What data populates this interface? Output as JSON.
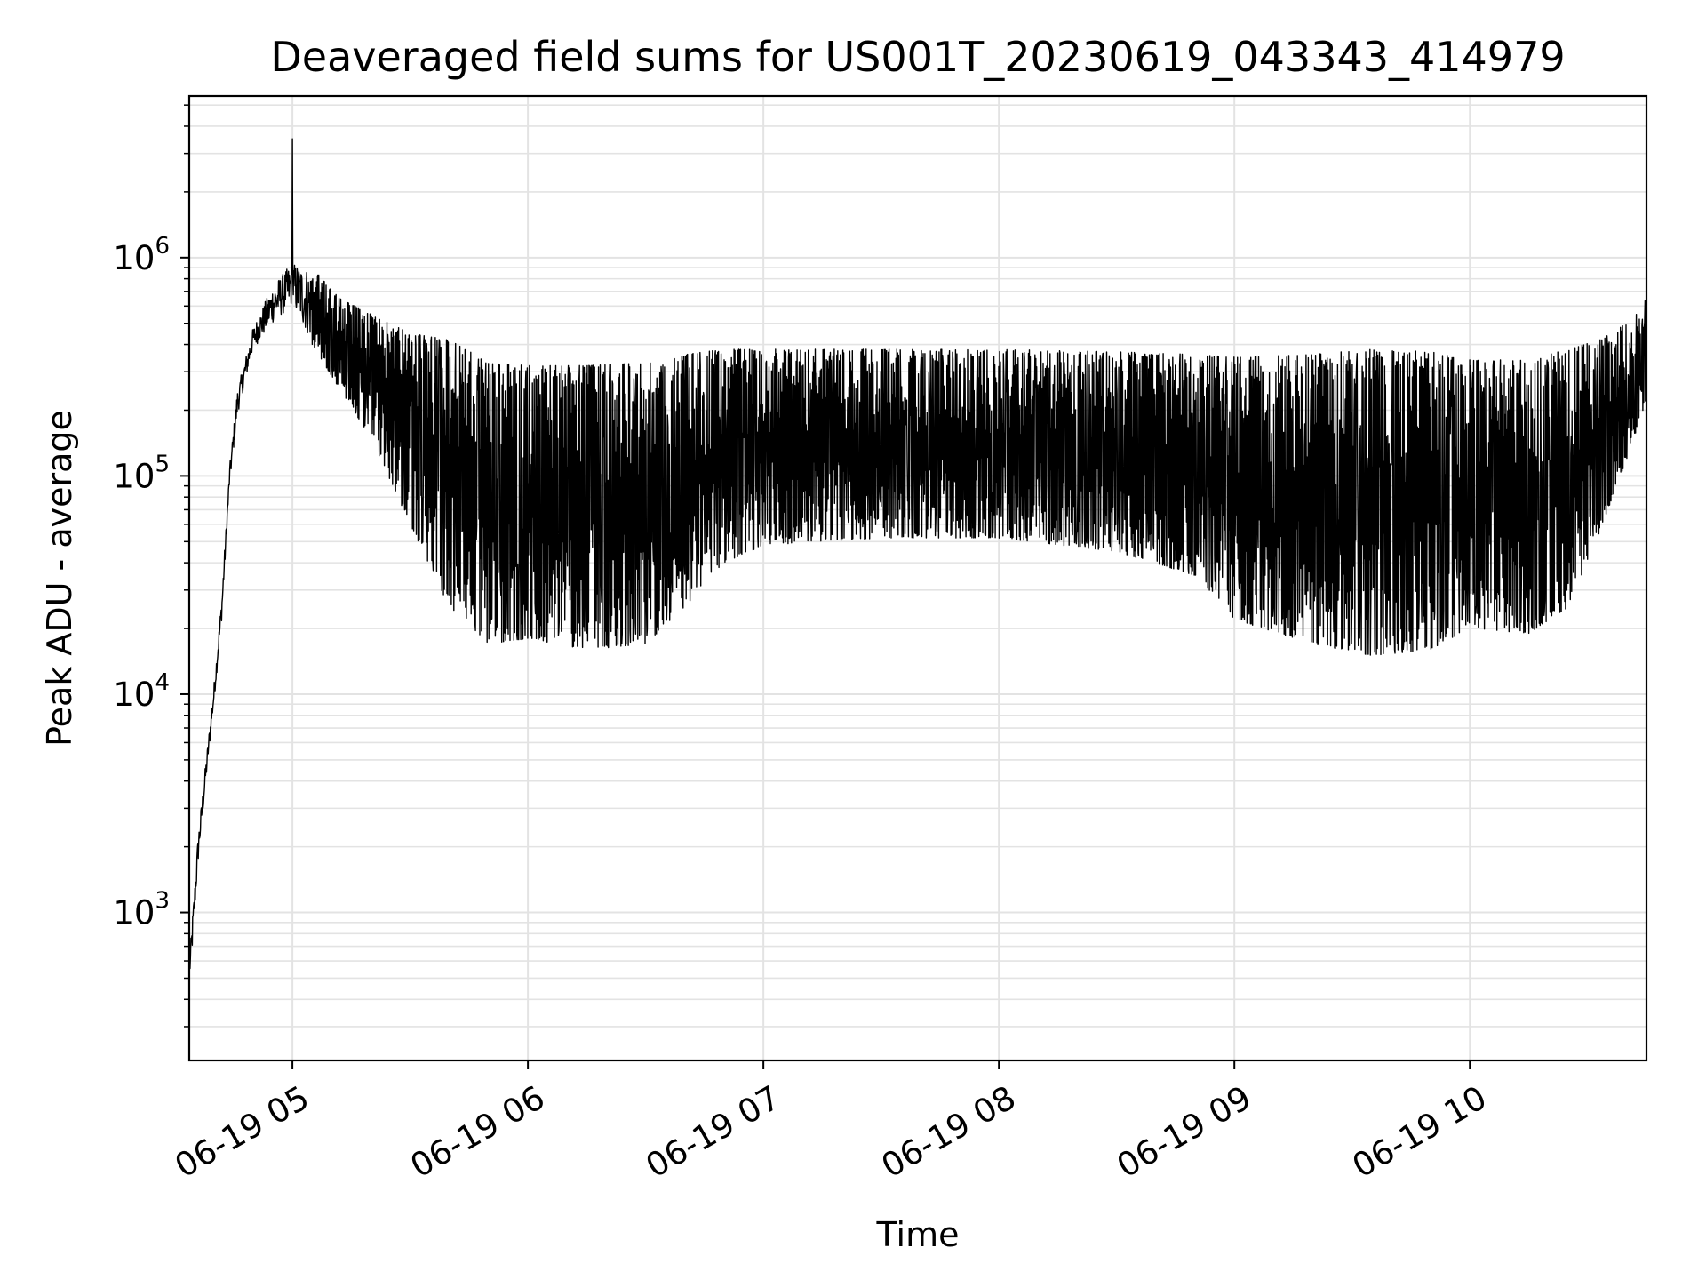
{
  "chart_data": {
    "type": "line",
    "title": "Deaveraged field sums for US001T_20230619_043343_414979",
    "xlabel": "Time",
    "ylabel": "Peak ADU - average",
    "y_scale": "log",
    "ylim": [
      210,
      5500000
    ],
    "xlim": [
      "2023-06-19 04:33:43",
      "2023-06-19 10:45:00"
    ],
    "grid": true,
    "line_color": "#000000",
    "grid_color": "#e3e3e3",
    "x_ticks": [
      {
        "value": "2023-06-19 05:00",
        "label": "06-19 05"
      },
      {
        "value": "2023-06-19 06:00",
        "label": "06-19 06"
      },
      {
        "value": "2023-06-19 07:00",
        "label": "06-19 07"
      },
      {
        "value": "2023-06-19 08:00",
        "label": "06-19 08"
      },
      {
        "value": "2023-06-19 09:00",
        "label": "06-19 09"
      },
      {
        "value": "2023-06-19 10:00",
        "label": "06-19 10"
      }
    ],
    "y_ticks": [
      {
        "value": 1000,
        "base": "10",
        "exp": "3"
      },
      {
        "value": 10000,
        "base": "10",
        "exp": "4"
      },
      {
        "value": 100000,
        "base": "10",
        "exp": "5"
      },
      {
        "value": 1000000,
        "base": "10",
        "exp": "6"
      }
    ],
    "series": [
      {
        "style": "oscillating",
        "peak_value": {
          "x": "2023-06-19 05:00",
          "y": 3500000
        },
        "envelope": [
          {
            "x": "2023-06-19 04:34",
            "low": 500,
            "high": 700
          },
          {
            "x": "2023-06-19 04:36",
            "low": 1700,
            "high": 2300
          },
          {
            "x": "2023-06-19 04:38",
            "low": 4000,
            "high": 5000
          },
          {
            "x": "2023-06-19 04:40",
            "low": 9000,
            "high": 11000
          },
          {
            "x": "2023-06-19 04:42",
            "low": 22000,
            "high": 28000
          },
          {
            "x": "2023-06-19 04:44",
            "low": 90000,
            "high": 110000
          },
          {
            "x": "2023-06-19 04:46",
            "low": 190000,
            "high": 250000
          },
          {
            "x": "2023-06-19 04:50",
            "low": 380000,
            "high": 480000
          },
          {
            "x": "2023-06-19 04:55",
            "low": 500000,
            "high": 750000
          },
          {
            "x": "2023-06-19 05:00",
            "low": 600000,
            "high": 950000
          },
          {
            "x": "2023-06-19 05:05",
            "low": 400000,
            "high": 900000
          },
          {
            "x": "2023-06-19 05:12",
            "low": 250000,
            "high": 650000
          },
          {
            "x": "2023-06-19 05:20",
            "low": 150000,
            "high": 550000
          },
          {
            "x": "2023-06-19 05:30",
            "low": 60000,
            "high": 450000
          },
          {
            "x": "2023-06-19 05:40",
            "low": 25000,
            "high": 420000
          },
          {
            "x": "2023-06-19 05:50",
            "low": 17000,
            "high": 330000
          },
          {
            "x": "2023-06-19 06:00",
            "low": 18000,
            "high": 320000
          },
          {
            "x": "2023-06-19 06:15",
            "low": 16000,
            "high": 320000
          },
          {
            "x": "2023-06-19 06:30",
            "low": 17000,
            "high": 330000
          },
          {
            "x": "2023-06-19 06:40",
            "low": 25000,
            "high": 360000
          },
          {
            "x": "2023-06-19 06:50",
            "low": 40000,
            "high": 380000
          },
          {
            "x": "2023-06-19 07:00",
            "low": 48000,
            "high": 380000
          },
          {
            "x": "2023-06-19 07:30",
            "low": 52000,
            "high": 380000
          },
          {
            "x": "2023-06-19 08:00",
            "low": 52000,
            "high": 380000
          },
          {
            "x": "2023-06-19 08:30",
            "low": 45000,
            "high": 370000
          },
          {
            "x": "2023-06-19 08:50",
            "low": 35000,
            "high": 360000
          },
          {
            "x": "2023-06-19 09:00",
            "low": 22000,
            "high": 350000
          },
          {
            "x": "2023-06-19 09:20",
            "low": 17000,
            "high": 360000
          },
          {
            "x": "2023-06-19 09:35",
            "low": 15000,
            "high": 380000
          },
          {
            "x": "2023-06-19 09:50",
            "low": 16000,
            "high": 370000
          },
          {
            "x": "2023-06-19 10:00",
            "low": 20000,
            "high": 340000
          },
          {
            "x": "2023-06-19 10:15",
            "low": 19000,
            "high": 340000
          },
          {
            "x": "2023-06-19 10:25",
            "low": 25000,
            "high": 380000
          },
          {
            "x": "2023-06-19 10:33",
            "low": 55000,
            "high": 420000
          },
          {
            "x": "2023-06-19 10:40",
            "low": 120000,
            "high": 500000
          },
          {
            "x": "2023-06-19 10:45",
            "low": 220000,
            "high": 650000
          }
        ]
      }
    ]
  }
}
